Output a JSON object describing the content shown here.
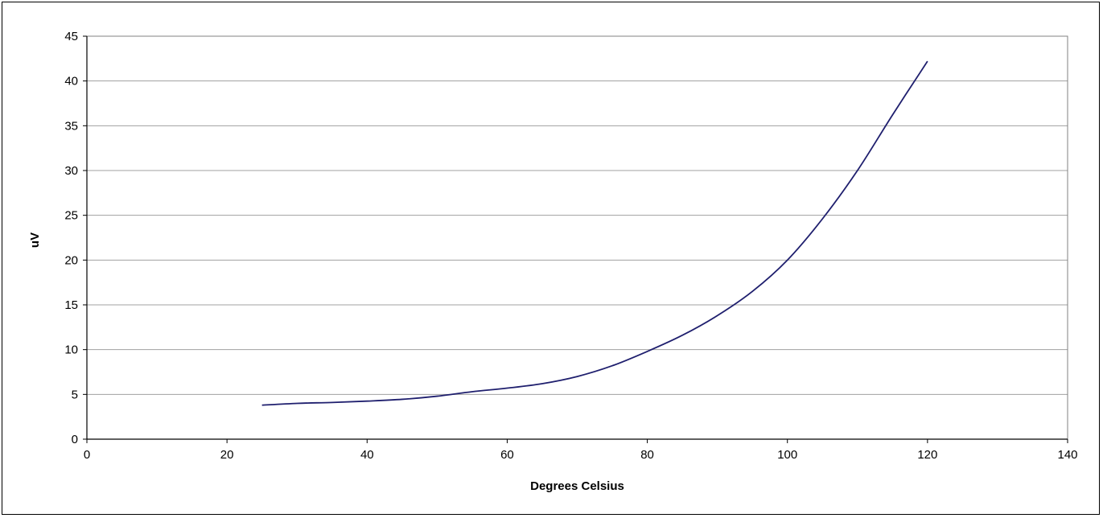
{
  "chart_data": {
    "type": "line",
    "title": "",
    "xlabel": "Degrees Celsius",
    "ylabel": "uV",
    "xlim": [
      0,
      140
    ],
    "ylim": [
      0,
      45
    ],
    "x_ticks": [
      0,
      20,
      40,
      60,
      80,
      100,
      120,
      140
    ],
    "y_ticks": [
      0,
      5,
      10,
      15,
      20,
      25,
      30,
      35,
      40,
      45
    ],
    "grid": "horizontal",
    "legend": "none",
    "series": [
      {
        "color": "#1f1f6e",
        "points": [
          [
            25,
            3.8
          ],
          [
            30,
            4.0
          ],
          [
            35,
            4.1
          ],
          [
            40,
            4.25
          ],
          [
            45,
            4.45
          ],
          [
            50,
            4.8
          ],
          [
            55,
            5.3
          ],
          [
            60,
            5.7
          ],
          [
            65,
            6.2
          ],
          [
            70,
            7.0
          ],
          [
            75,
            8.2
          ],
          [
            80,
            9.8
          ],
          [
            85,
            11.6
          ],
          [
            90,
            13.8
          ],
          [
            95,
            16.5
          ],
          [
            100,
            20.0
          ],
          [
            105,
            24.6
          ],
          [
            110,
            30.0
          ],
          [
            115,
            36.2
          ],
          [
            120,
            42.2
          ]
        ]
      }
    ],
    "plot_background": "#ffffff",
    "gridline_color": "#a0a0a0"
  }
}
